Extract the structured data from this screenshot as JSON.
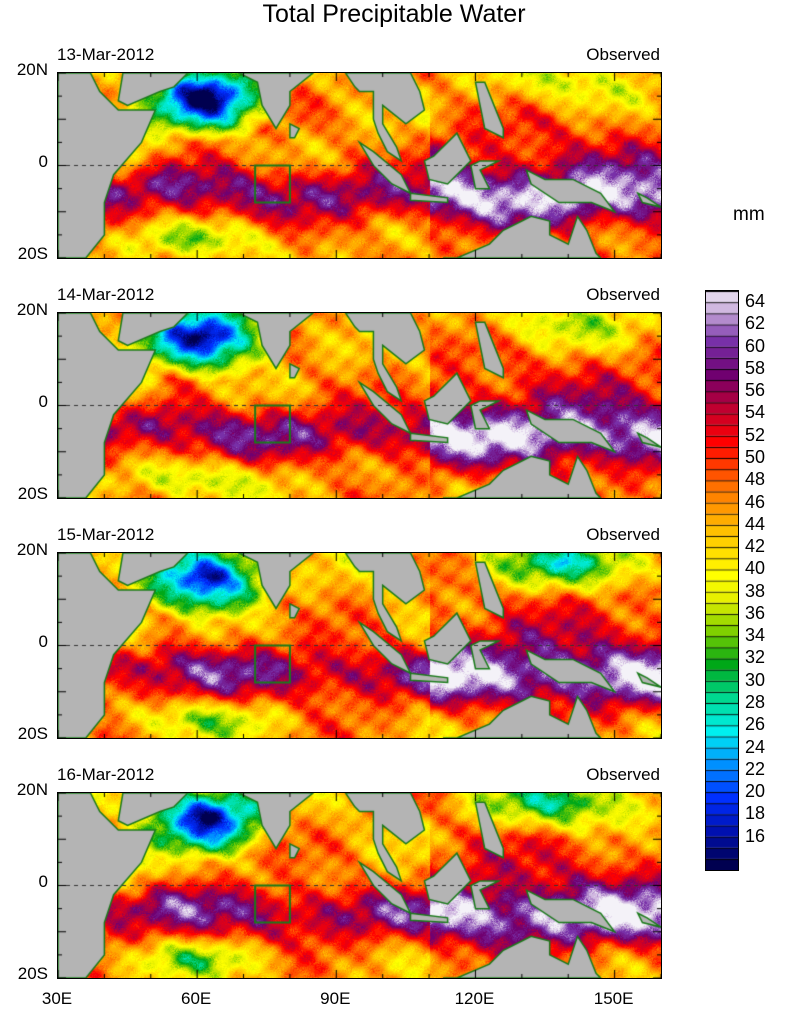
{
  "title": "Total Precipitable Water",
  "unit": "mm",
  "panels": [
    {
      "date": "13-Mar-2012",
      "label": "Observed",
      "day": 0
    },
    {
      "date": "14-Mar-2012",
      "label": "Observed",
      "day": 1
    },
    {
      "date": "15-Mar-2012",
      "label": "Observed",
      "day": 2
    },
    {
      "date": "16-Mar-2012",
      "label": "Observed",
      "day": 3
    }
  ],
  "lat_labels": [
    "20N",
    "0",
    "20S"
  ],
  "lon_labels": [
    "30E",
    "60E",
    "90E",
    "120E",
    "150E"
  ],
  "colorbar": {
    "min": 15,
    "max": 65,
    "step": 1,
    "labels": [
      "64",
      "62",
      "60",
      "58",
      "56",
      "54",
      "52",
      "50",
      "48",
      "46",
      "44",
      "42",
      "40",
      "38",
      "36",
      "34",
      "32",
      "30",
      "28",
      "26",
      "24",
      "22",
      "20",
      "18",
      "16"
    ],
    "anchors": [
      [
        14,
        "#000050"
      ],
      [
        17,
        "#0010b0"
      ],
      [
        20,
        "#0030ff"
      ],
      [
        23,
        "#0090ff"
      ],
      [
        26,
        "#00f0f0"
      ],
      [
        29,
        "#00d890"
      ],
      [
        32,
        "#00a818"
      ],
      [
        35,
        "#80d000"
      ],
      [
        38,
        "#e8f000"
      ],
      [
        40,
        "#ffff00"
      ],
      [
        44,
        "#ffc000"
      ],
      [
        48,
        "#ff7000"
      ],
      [
        52,
        "#ff0000"
      ],
      [
        55,
        "#c00030"
      ],
      [
        58,
        "#700070"
      ],
      [
        61,
        "#7830a8"
      ],
      [
        64,
        "#d0b8e0"
      ],
      [
        66,
        "#f4f2f8"
      ]
    ]
  },
  "colors": {
    "land": "#b4b4b4",
    "coast": "#1a7a1a"
  }
}
